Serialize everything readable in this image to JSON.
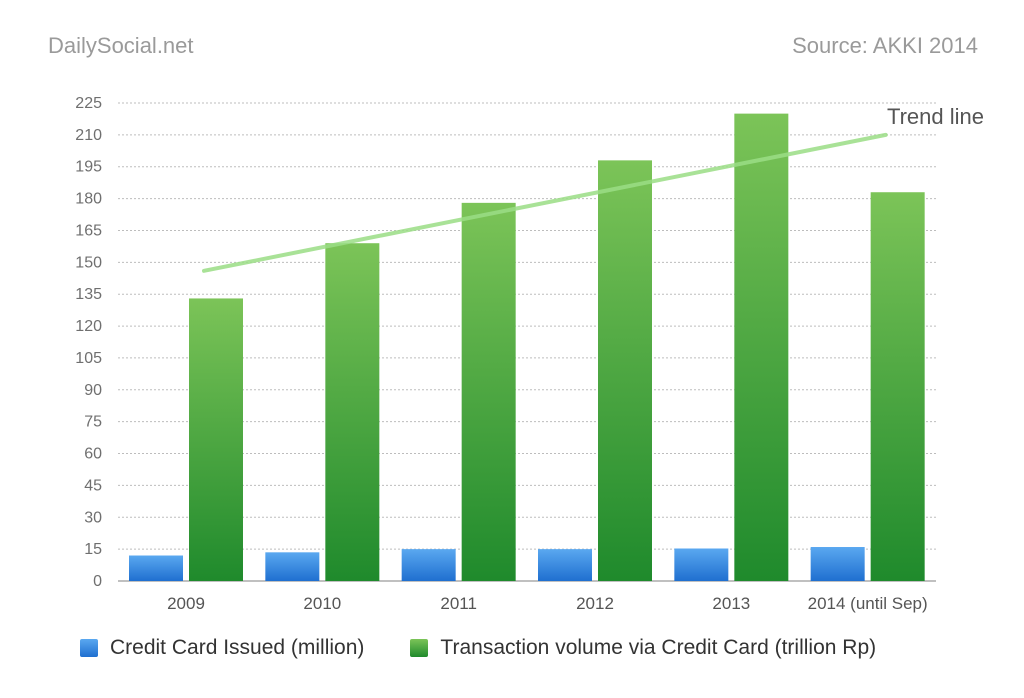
{
  "header": {
    "brand": "DailySocial.net",
    "source": "Source: AKKI 2014"
  },
  "colors": {
    "blue_top": "#5aa8f0",
    "blue_bottom": "#1f6fd0",
    "green_top": "#7cc458",
    "green_bottom": "#1f8a2c",
    "trend": "#9bde86",
    "grid": "#bdbdbd"
  },
  "chart_data": {
    "type": "bar",
    "categories": [
      "2009",
      "2010",
      "2011",
      "2012",
      "2013",
      "2014 (until Sep)"
    ],
    "series": [
      {
        "name": "Credit Card Issued (million)",
        "values": [
          12,
          13.5,
          15,
          15,
          15.3,
          16
        ]
      },
      {
        "name": "Transaction volume via Credit Card (trillion Rp)",
        "values": [
          133,
          159,
          178,
          198,
          220,
          183
        ]
      }
    ],
    "ylim": [
      0,
      225
    ],
    "yticks": [
      "0",
      "15",
      "30",
      "45",
      "60",
      "75",
      "90",
      "105",
      "120",
      "135",
      "150",
      "165",
      "180",
      "195",
      "210",
      "225"
    ],
    "grid": true,
    "legend_position": "bottom",
    "annotations": [
      {
        "text": "Trend line",
        "from": [
          "2009",
          146
        ],
        "to": [
          "2014 (until Sep)",
          210
        ]
      }
    ]
  }
}
